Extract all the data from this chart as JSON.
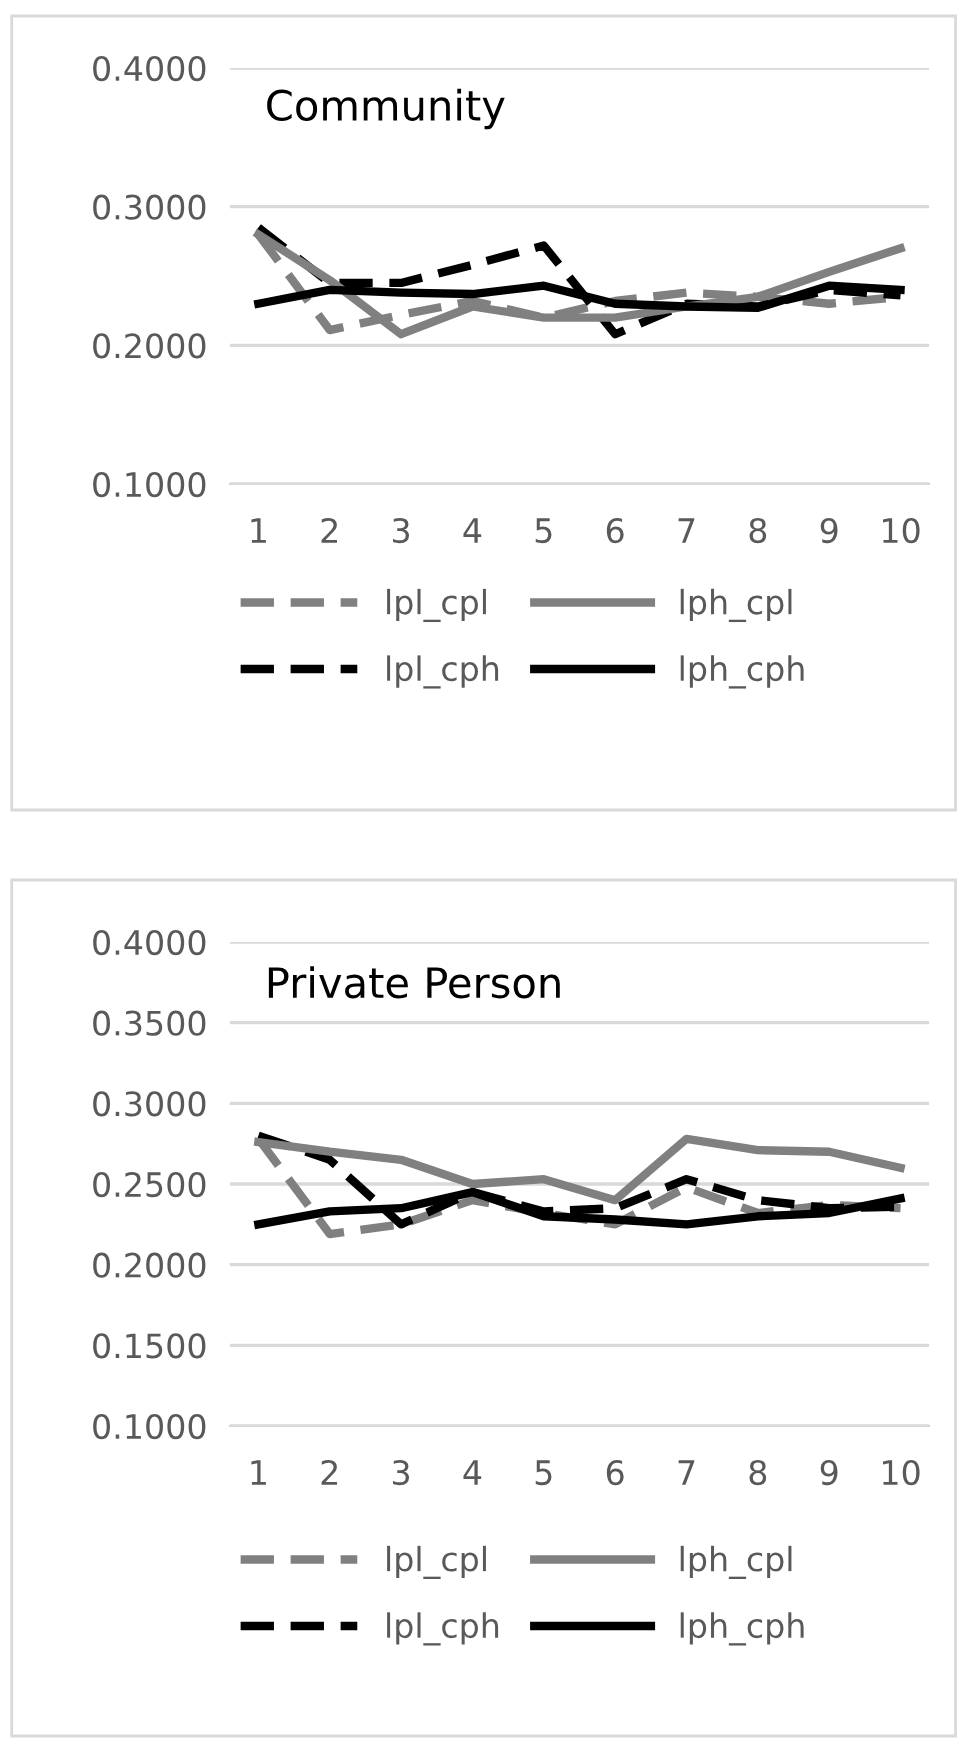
{
  "chart_data": [
    {
      "type": "line",
      "title": "Community",
      "categories": [
        "1",
        "2",
        "3",
        "4",
        "5",
        "6",
        "7",
        "8",
        "9",
        "10"
      ],
      "ylim": [
        0.1,
        0.4
      ],
      "yticks": [
        {
          "value": 0.1,
          "label": "0.1000"
        },
        {
          "value": 0.2,
          "label": "0.2000"
        },
        {
          "value": 0.3,
          "label": "0.3000"
        },
        {
          "value": 0.4,
          "label": "0.4000"
        }
      ],
      "grid": "y",
      "legend": "bottom",
      "series": [
        {
          "name": "lpl_cpl",
          "color": "#808080",
          "line_style": "dashed",
          "values": [
            0.28,
            0.211,
            0.222,
            0.232,
            0.22,
            0.232,
            0.238,
            0.235,
            0.23,
            0.235
          ]
        },
        {
          "name": "lpl_cph",
          "color": "#000000",
          "line_style": "dashed",
          "values": [
            0.285,
            0.245,
            0.245,
            0.258,
            0.272,
            0.208,
            0.23,
            0.228,
            0.24,
            0.236
          ]
        },
        {
          "name": "lph_cpl",
          "color": "#808080",
          "line_style": "solid",
          "values": [
            0.28,
            0.247,
            0.208,
            0.228,
            0.22,
            0.22,
            0.228,
            0.235,
            0.253,
            0.27
          ]
        },
        {
          "name": "lph_cph",
          "color": "#000000",
          "line_style": "solid",
          "values": [
            0.23,
            0.24,
            0.238,
            0.237,
            0.243,
            0.23,
            0.228,
            0.227,
            0.243,
            0.24
          ]
        }
      ]
    },
    {
      "type": "line",
      "title": "Private Person",
      "categories": [
        "1",
        "2",
        "3",
        "4",
        "5",
        "6",
        "7",
        "8",
        "9",
        "10"
      ],
      "ylim": [
        0.1,
        0.4
      ],
      "yticks": [
        {
          "value": 0.1,
          "label": "0.1000"
        },
        {
          "value": 0.15,
          "label": "0.1500"
        },
        {
          "value": 0.2,
          "label": "0.2000"
        },
        {
          "value": 0.25,
          "label": "0.2500"
        },
        {
          "value": 0.3,
          "label": "0.3000"
        },
        {
          "value": 0.35,
          "label": "0.3500"
        },
        {
          "value": 0.4,
          "label": "0.4000"
        }
      ],
      "grid": "y",
      "legend": "bottom",
      "series": [
        {
          "name": "lpl_cpl",
          "color": "#808080",
          "line_style": "dashed",
          "values": [
            0.278,
            0.219,
            0.225,
            0.24,
            0.232,
            0.225,
            0.248,
            0.232,
            0.237,
            0.235
          ]
        },
        {
          "name": "lpl_cph",
          "color": "#000000",
          "line_style": "dashed",
          "values": [
            0.28,
            0.265,
            0.225,
            0.245,
            0.233,
            0.235,
            0.253,
            0.24,
            0.235,
            0.236
          ]
        },
        {
          "name": "lph_cpl",
          "color": "#808080",
          "line_style": "solid",
          "values": [
            0.276,
            0.27,
            0.265,
            0.25,
            0.253,
            0.24,
            0.278,
            0.271,
            0.27,
            0.26
          ]
        },
        {
          "name": "lph_cph",
          "color": "#000000",
          "line_style": "solid",
          "values": [
            0.225,
            0.233,
            0.235,
            0.245,
            0.23,
            0.228,
            0.225,
            0.23,
            0.232,
            0.241
          ]
        }
      ]
    }
  ]
}
